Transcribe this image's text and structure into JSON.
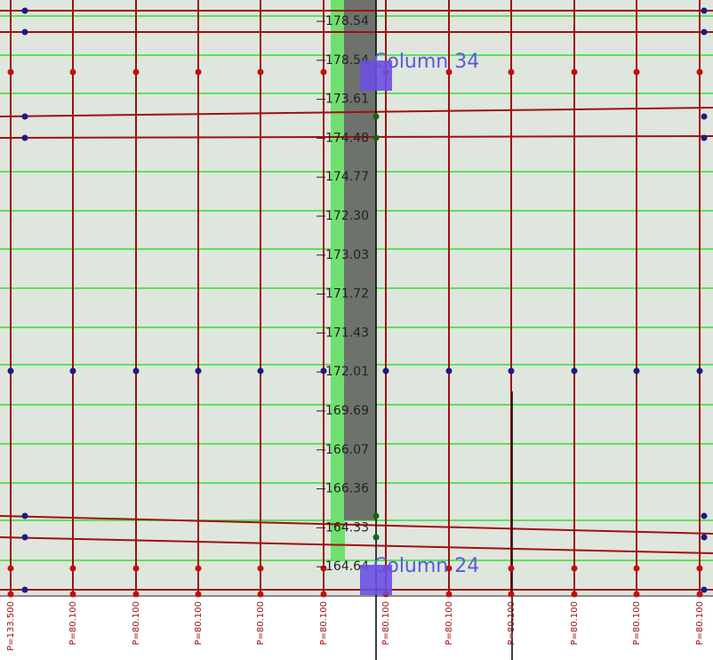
{
  "strip_labels": [
    "178.54",
    "178.54",
    "173.61",
    "174.48",
    "174.77",
    "172.30",
    "173.03",
    "171.72",
    "171.43",
    "172.01",
    "169.69",
    "166.07",
    "166.36",
    "164.33",
    "164.64"
  ],
  "columns": [
    {
      "label": "Column 34"
    },
    {
      "label": "Column 24"
    }
  ],
  "bottom_labels": [
    "P=133.500",
    "P=80.100",
    "P=80.100",
    "P=80.100",
    "P=80.100",
    "P=80.100",
    "P=80.100",
    "P=80.100",
    "P=80.100",
    "P=80.100",
    "P=80.100",
    "P=80.100"
  ]
}
